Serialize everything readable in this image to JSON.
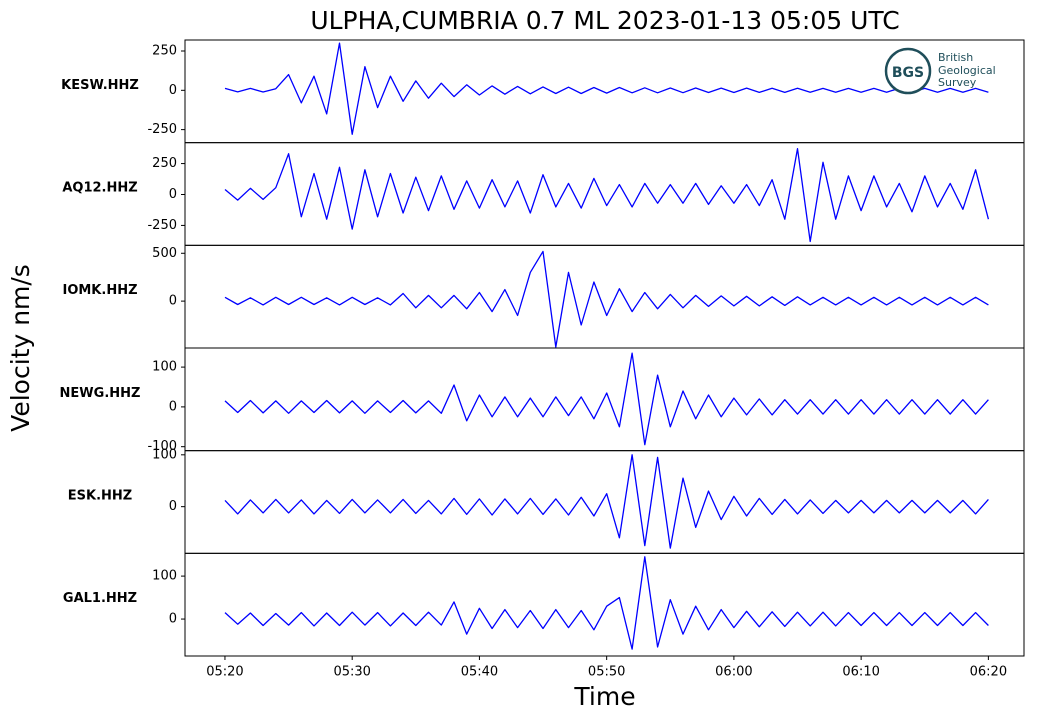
{
  "chart_data": {
    "type": "line",
    "title": "ULPHA,CUMBRIA 0.7 ML   2023-01-13 05:05 UTC",
    "xlabel": "Time",
    "ylabel": "Velocity nm/s",
    "xlim": [
      16.86,
      82.8
    ],
    "xticks": [
      {
        "value": 20,
        "label": "05:20"
      },
      {
        "value": 30,
        "label": "05:30"
      },
      {
        "value": 40,
        "label": "05:40"
      },
      {
        "value": 50,
        "label": "05:50"
      },
      {
        "value": 60,
        "label": "06:00"
      },
      {
        "value": 70,
        "label": "06:10"
      },
      {
        "value": 80,
        "label": "06:20"
      }
    ],
    "x": [
      20,
      21,
      22,
      23,
      24,
      25,
      26,
      27,
      28,
      29,
      30,
      31,
      32,
      33,
      34,
      35,
      36,
      37,
      38,
      39,
      40,
      41,
      42,
      43,
      44,
      45,
      46,
      47,
      48,
      49,
      50,
      51,
      52,
      53,
      54,
      55,
      56,
      57,
      58,
      59,
      60,
      61,
      62,
      63,
      64,
      65,
      66,
      67,
      68,
      69,
      70,
      71,
      72,
      73,
      74,
      75,
      76,
      77,
      78,
      79,
      80
    ],
    "series": [
      {
        "name": "KESW.HHZ",
        "color": "#0000ff",
        "ylim": [
          -333,
          320
        ],
        "yticks": [
          -250,
          0,
          250
        ],
        "values": [
          12,
          -10,
          12,
          -11,
          10,
          100,
          -80,
          90,
          -150,
          300,
          -280,
          150,
          -110,
          90,
          -70,
          60,
          -50,
          45,
          -40,
          35,
          -30,
          28,
          -25,
          25,
          -22,
          22,
          -20,
          20,
          -20,
          18,
          -18,
          18,
          -16,
          16,
          -16,
          15,
          -15,
          15,
          -14,
          14,
          -14,
          14,
          -13,
          13,
          -13,
          13,
          -12,
          12,
          -12,
          12,
          -12,
          12,
          -12,
          12,
          -12,
          12,
          -12,
          12,
          -12,
          12,
          -12
        ]
      },
      {
        "name": "AQ12.HHZ",
        "color": "#0000ff",
        "ylim": [
          -411,
          419
        ],
        "yticks": [
          -250,
          0,
          250
        ],
        "values": [
          40,
          -45,
          50,
          -40,
          55,
          330,
          -180,
          170,
          -200,
          220,
          -280,
          200,
          -180,
          170,
          -150,
          140,
          -130,
          150,
          -120,
          110,
          -110,
          120,
          -100,
          110,
          -150,
          160,
          -100,
          90,
          -110,
          130,
          -90,
          80,
          -100,
          90,
          -70,
          80,
          -70,
          90,
          -80,
          70,
          -70,
          80,
          -90,
          120,
          -200,
          370,
          -380,
          260,
          -200,
          150,
          -130,
          150,
          -100,
          90,
          -140,
          150,
          -100,
          90,
          -120,
          200,
          -200
        ]
      },
      {
        "name": "IOMK.HHZ",
        "color": "#0000ff",
        "ylim": [
          -490,
          583
        ],
        "yticks": [
          0,
          500
        ],
        "values": [
          40,
          -35,
          35,
          -40,
          40,
          -35,
          40,
          -35,
          35,
          -40,
          40,
          -35,
          35,
          -40,
          80,
          -70,
          60,
          -70,
          60,
          -80,
          90,
          -110,
          120,
          -150,
          300,
          520,
          -480,
          300,
          -250,
          200,
          -150,
          130,
          -110,
          90,
          -80,
          70,
          -70,
          60,
          -55,
          55,
          -50,
          50,
          -50,
          45,
          -45,
          45,
          -40,
          40,
          -40,
          40,
          -40,
          40,
          -40,
          40,
          -40,
          40,
          -40,
          40,
          -40,
          40,
          -40
        ]
      },
      {
        "name": "NEWG.HHZ",
        "color": "#0000ff",
        "ylim": [
          -110,
          148
        ],
        "yticks": [
          -100,
          0,
          100
        ],
        "values": [
          15,
          -14,
          16,
          -15,
          15,
          -16,
          15,
          -14,
          16,
          -15,
          15,
          -16,
          15,
          -14,
          16,
          -15,
          15,
          -16,
          55,
          -35,
          30,
          -25,
          25,
          -25,
          22,
          -25,
          25,
          -22,
          25,
          -30,
          35,
          -50,
          135,
          -95,
          80,
          -50,
          40,
          -30,
          30,
          -25,
          22,
          -20,
          20,
          -20,
          18,
          -18,
          18,
          -18,
          18,
          -18,
          18,
          -18,
          18,
          -18,
          18,
          -18,
          18,
          -18,
          18,
          -18,
          18
        ]
      },
      {
        "name": "ESK.HHZ",
        "color": "#0000ff",
        "ylim": [
          -90,
          108
        ],
        "yticks": [
          0,
          100
        ],
        "values": [
          12,
          -14,
          13,
          -12,
          14,
          -12,
          13,
          -14,
          12,
          -13,
          14,
          -12,
          13,
          -12,
          14,
          -13,
          12,
          -14,
          16,
          -15,
          15,
          -16,
          15,
          -14,
          16,
          -15,
          15,
          -16,
          18,
          -18,
          25,
          -60,
          100,
          -75,
          95,
          -80,
          55,
          -40,
          30,
          -25,
          20,
          -18,
          16,
          -15,
          14,
          -14,
          13,
          -13,
          12,
          -12,
          12,
          -12,
          12,
          -12,
          12,
          -12,
          12,
          -12,
          12,
          -14,
          14
        ]
      },
      {
        "name": "GAL1.HHZ",
        "color": "#0000ff",
        "ylim": [
          -86,
          153
        ],
        "yticks": [
          0,
          100
        ],
        "values": [
          15,
          -12,
          14,
          -15,
          13,
          -14,
          15,
          -16,
          14,
          -15,
          16,
          -14,
          15,
          -16,
          14,
          -15,
          16,
          -14,
          40,
          -35,
          25,
          -22,
          22,
          -20,
          20,
          -22,
          22,
          -20,
          20,
          -25,
          30,
          50,
          -70,
          145,
          -65,
          45,
          -35,
          30,
          -25,
          22,
          -20,
          18,
          -18,
          17,
          -17,
          16,
          -16,
          16,
          -16,
          15,
          -15,
          15,
          -15,
          15,
          -15,
          15,
          -15,
          15,
          -15,
          15,
          -15
        ]
      }
    ]
  },
  "logo": {
    "mark": "BGS",
    "lines": [
      "British",
      "Geological",
      "Survey"
    ]
  }
}
